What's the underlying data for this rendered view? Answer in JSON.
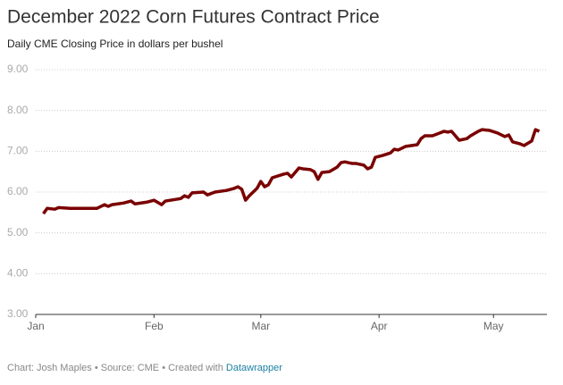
{
  "chart_data": {
    "type": "line",
    "title": "December 2022 Corn Futures Contract Price",
    "subtitle": "Daily CME Closing Price in dollars per bushel",
    "footer": "Chart: Josh Maples • Source: CME • Created with",
    "footer_link": "Datawrapper",
    "x": [
      2,
      3,
      5,
      6,
      9,
      16,
      18,
      19,
      20,
      23,
      25,
      26,
      29,
      31,
      33,
      34,
      38,
      39,
      40,
      41,
      44,
      45,
      47,
      50,
      52,
      53,
      54,
      55,
      56,
      58,
      59,
      60,
      61,
      62,
      65,
      66,
      67,
      69,
      70,
      72,
      73,
      74,
      75,
      77,
      79,
      80,
      81,
      83,
      84,
      86,
      87,
      88,
      89,
      91,
      93,
      94,
      95,
      97,
      100,
      101,
      102,
      104,
      106,
      107,
      108,
      109,
      111,
      113,
      114,
      116,
      117,
      119,
      121,
      123,
      124,
      125,
      127,
      128,
      130,
      131,
      132
    ],
    "series": [
      {
        "color": "#7a0000",
        "values": [
          5.47,
          5.6,
          5.58,
          5.62,
          5.6,
          5.6,
          5.69,
          5.65,
          5.69,
          5.73,
          5.78,
          5.71,
          5.75,
          5.8,
          5.69,
          5.78,
          5.84,
          5.91,
          5.87,
          5.98,
          6.0,
          5.93,
          6.0,
          6.04,
          6.09,
          6.13,
          6.07,
          5.8,
          5.91,
          6.09,
          6.26,
          6.13,
          6.18,
          6.35,
          6.44,
          6.46,
          6.37,
          6.59,
          6.57,
          6.55,
          6.5,
          6.31,
          6.48,
          6.5,
          6.61,
          6.72,
          6.74,
          6.7,
          6.7,
          6.66,
          6.57,
          6.61,
          6.85,
          6.9,
          6.96,
          7.05,
          7.03,
          7.12,
          7.16,
          7.31,
          7.38,
          7.38,
          7.45,
          7.49,
          7.47,
          7.49,
          7.27,
          7.31,
          7.38,
          7.49,
          7.53,
          7.51,
          7.45,
          7.36,
          7.4,
          7.23,
          7.18,
          7.14,
          7.25,
          7.53,
          7.49
        ]
      }
    ],
    "xlim": [
      0,
      134
    ],
    "xticks": [
      {
        "value": 0,
        "label": "Jan"
      },
      {
        "value": 31,
        "label": "Feb"
      },
      {
        "value": 59,
        "label": "Mar"
      },
      {
        "value": 90,
        "label": "Apr"
      },
      {
        "value": 120,
        "label": "May"
      }
    ],
    "ylim": [
      3,
      9
    ],
    "yticks": [
      {
        "value": 3,
        "label": "3.00"
      },
      {
        "value": 4,
        "label": "4.00"
      },
      {
        "value": 5,
        "label": "5.00"
      },
      {
        "value": 6,
        "label": "6.00"
      },
      {
        "value": 7,
        "label": "7.00"
      },
      {
        "value": 8,
        "label": "8.00"
      },
      {
        "value": 9,
        "label": "9.00"
      }
    ],
    "grid": true
  }
}
